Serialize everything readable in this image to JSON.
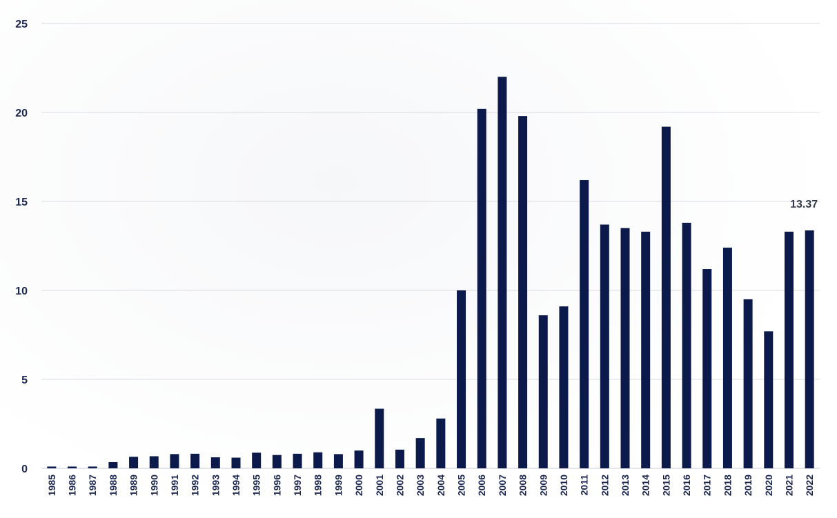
{
  "chart_data": {
    "type": "bar",
    "title": "",
    "xlabel": "",
    "ylabel": "",
    "ylim": [
      0,
      25
    ],
    "yticks": [
      "0",
      "5",
      "10",
      "15",
      "20",
      "25"
    ],
    "grid": true,
    "legend": "none",
    "bar_color": "#0b1a4a",
    "categories": [
      "1985",
      "1986",
      "1987",
      "1988",
      "1989",
      "1990",
      "1991",
      "1992",
      "1993",
      "1994",
      "1995",
      "1996",
      "1997",
      "1998",
      "1999",
      "2000",
      "2001",
      "2002",
      "2003",
      "2004",
      "2005",
      "2006",
      "2007",
      "2008",
      "2009",
      "2010",
      "2011",
      "2012",
      "2013",
      "2014",
      "2015",
      "2016",
      "2017",
      "2018",
      "2019",
      "2020",
      "2021",
      "2022"
    ],
    "values": [
      0.1,
      0.1,
      0.1,
      0.35,
      0.65,
      0.68,
      0.8,
      0.82,
      0.62,
      0.6,
      0.88,
      0.75,
      0.82,
      0.9,
      0.8,
      1.0,
      3.35,
      1.05,
      1.7,
      2.8,
      10.0,
      20.2,
      22.0,
      19.8,
      8.6,
      9.1,
      16.2,
      13.7,
      13.5,
      13.3,
      19.2,
      13.8,
      11.2,
      12.4,
      9.5,
      7.7,
      13.3,
      13.37
    ],
    "annotations": [
      {
        "category": "2022",
        "text": "13.37"
      }
    ]
  }
}
